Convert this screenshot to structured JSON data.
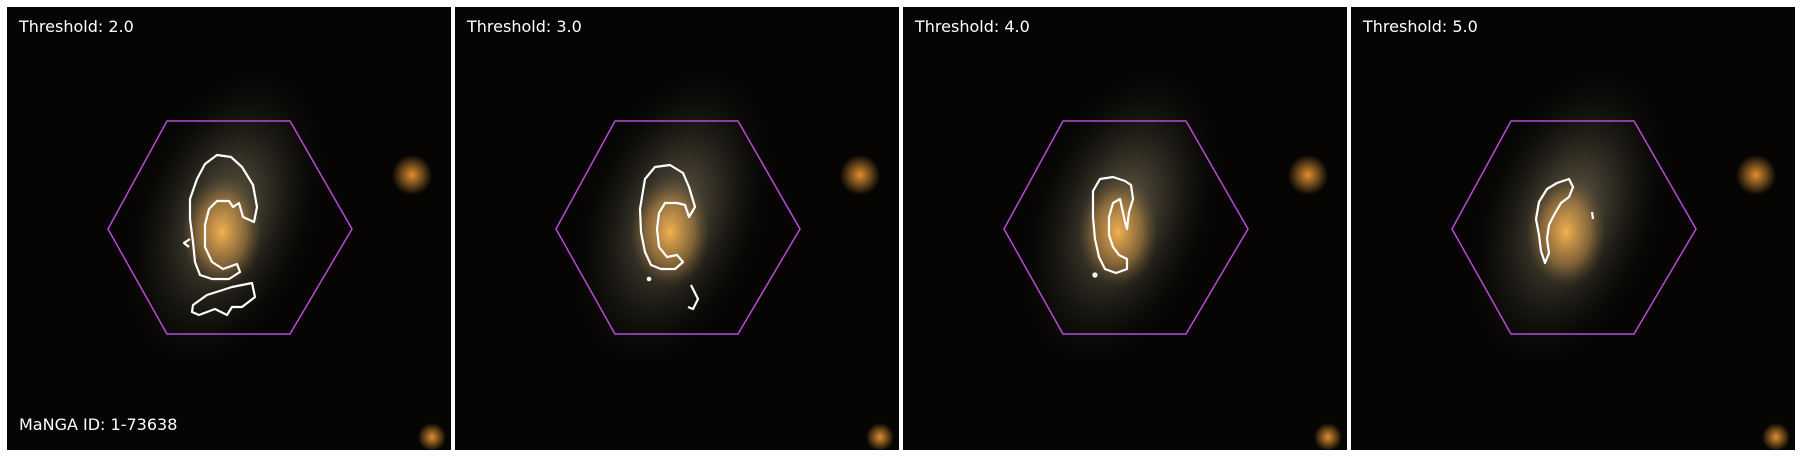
{
  "panels": [
    {
      "label": "Threshold: 2.0"
    },
    {
      "label": "Threshold: 3.0"
    },
    {
      "label": "Threshold: 4.0"
    },
    {
      "label": "Threshold: 5.0"
    }
  ],
  "manga_id": "MaNGA ID: 1-73638",
  "colors": {
    "hexagon": "#b84ad6",
    "contour": "#ffffff",
    "galaxy_core": "#e0a040",
    "sky": "#050403"
  },
  "icons": [
    "galaxy-image",
    "ifu-hexagon",
    "contour-outline"
  ]
}
